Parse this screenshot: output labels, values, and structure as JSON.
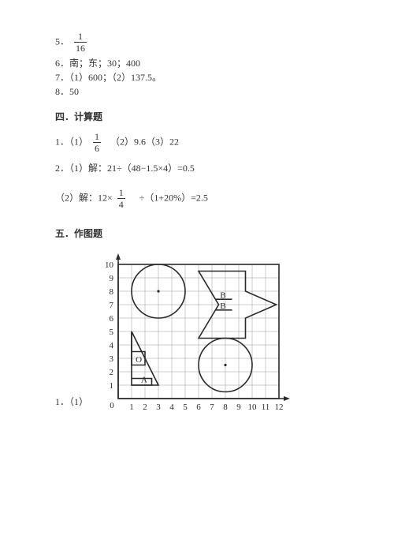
{
  "answers": {
    "a5_prefix": "5．",
    "a5_frac": {
      "num": "1",
      "den": "16"
    },
    "a6": "6．南；东；30；400",
    "a7": "7．（1）600；（2）137.5。",
    "a8": "8．50"
  },
  "section4": {
    "heading": "四．计算题",
    "q1_prefix": "1．（1）",
    "q1_frac": {
      "num": "1",
      "den": "6"
    },
    "q1_rest": "　（2）9.6（3）22",
    "q2_1": "2．（1）解：21÷（48−1.5×4）=0.5",
    "q2_2_prefix": "（2）解：12×",
    "q2_2_frac": {
      "num": "1",
      "den": "4"
    },
    "q2_2_rest": "　÷（1+20%）=2.5"
  },
  "section5": {
    "heading": "五．作图题",
    "q1": "1．（1）"
  },
  "figure": {
    "grid": {
      "cell": 17,
      "cols": 12,
      "rows": 10,
      "originX": 30,
      "originY": 190,
      "grid_color": "#9a9a9a",
      "line_color": "#2a2a2a",
      "xticks": [
        "1",
        "2",
        "3",
        "4",
        "5",
        "6",
        "7",
        "8",
        "9",
        "10",
        "11",
        "12"
      ],
      "yticks": [
        "1",
        "2",
        "3",
        "4",
        "5",
        "6",
        "7",
        "8",
        "9",
        "10"
      ],
      "origin_label": "0"
    },
    "shapes": {
      "circle1": {
        "cx_cell": 3,
        "cy_cell": 8,
        "r_cell": 2
      },
      "circle2": {
        "cx_cell": 8,
        "cy_cell": 2.5,
        "r_cell": 2
      },
      "triangleA": {
        "pts_cells": [
          [
            1,
            5
          ],
          [
            1,
            1
          ],
          [
            3,
            1
          ]
        ]
      },
      "triA_extra": {
        "pts_cells": [
          [
            1,
            1
          ],
          [
            2.5,
            1
          ],
          [
            2.5,
            1.5
          ],
          [
            1,
            1.5
          ]
        ]
      },
      "L_shape": {
        "pts_cells": [
          [
            1,
            5
          ],
          [
            1,
            2.5
          ],
          [
            2,
            2.5
          ],
          [
            2,
            3.5
          ],
          [
            1,
            3.5
          ]
        ]
      },
      "arrowB": {
        "pts_cells": [
          [
            6,
            9.5
          ],
          [
            9.5,
            9.5
          ],
          [
            9.5,
            8
          ],
          [
            11.8,
            7
          ],
          [
            9.5,
            6
          ],
          [
            9.5,
            4.5
          ],
          [
            6,
            4.5
          ],
          [
            7.5,
            7
          ]
        ]
      },
      "arrowB_inner": {
        "y1_cell": 7.4,
        "y2_cell": 6.6,
        "x1_cell": 7.3,
        "x2_cell": 8.5
      }
    },
    "labels": {
      "A": {
        "text": "A",
        "x_cell": 1.7,
        "y_cell": 1.2
      },
      "O": {
        "text": "O",
        "x_cell": 1.3,
        "y_cell": 2.7
      },
      "B1": {
        "text": "B",
        "x_cell": 7.6,
        "y_cell": 7.5
      },
      "B2": {
        "text": "B",
        "x_cell": 7.6,
        "y_cell": 6.7
      }
    }
  }
}
